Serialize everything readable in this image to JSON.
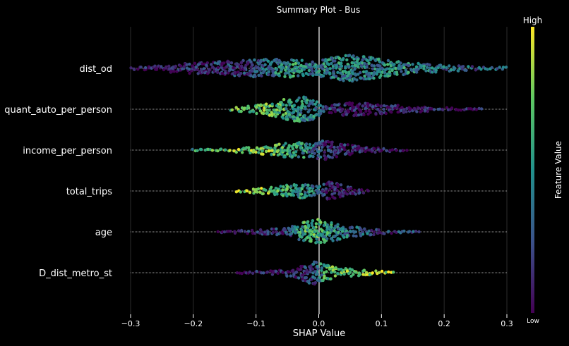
{
  "chart_data": {
    "type": "scatter",
    "subtype": "shap-beeswarm",
    "title": "Summary Plot - Bus",
    "xlabel": "SHAP Value",
    "ylabel": "",
    "xlim": [
      -0.3,
      0.3
    ],
    "xticks": [
      -0.3,
      -0.2,
      -0.1,
      0.0,
      0.1,
      0.2,
      0.3
    ],
    "xtick_labels": [
      "−0.3",
      "−0.2",
      "−0.1",
      "0.0",
      "0.1",
      "0.2",
      "0.3"
    ],
    "grid": true,
    "zero_line": 0.0,
    "colorbar": {
      "label": "Feature Value",
      "high_label": "High",
      "low_label": "Low",
      "colormap": "viridis",
      "colors": [
        "#440154",
        "#3b528b",
        "#21918c",
        "#5ec962",
        "#fde725"
      ]
    },
    "features": [
      {
        "name": "dist_od",
        "range": [
          -0.3,
          0.3
        ],
        "segments": [
          {
            "x": -0.3,
            "w": 0.1,
            "v": 0.05
          },
          {
            "x": -0.25,
            "w": 0.25,
            "v": 0.08
          },
          {
            "x": -0.2,
            "w": 0.4,
            "v": 0.1
          },
          {
            "x": -0.15,
            "w": 0.55,
            "v": 0.15
          },
          {
            "x": -0.1,
            "w": 0.65,
            "v": 0.2
          },
          {
            "x": -0.07,
            "w": 0.7,
            "v": 0.45
          },
          {
            "x": -0.04,
            "w": 0.65,
            "v": 0.55
          },
          {
            "x": -0.01,
            "w": 0.55,
            "v": 0.4
          },
          {
            "x": 0.02,
            "w": 0.8,
            "v": 0.45
          },
          {
            "x": 0.05,
            "w": 1.0,
            "v": 0.45
          },
          {
            "x": 0.08,
            "w": 0.85,
            "v": 0.4
          },
          {
            "x": 0.11,
            "w": 0.6,
            "v": 0.5
          },
          {
            "x": 0.14,
            "w": 0.45,
            "v": 0.45
          },
          {
            "x": 0.18,
            "w": 0.3,
            "v": 0.4
          },
          {
            "x": 0.22,
            "w": 0.2,
            "v": 0.3
          },
          {
            "x": 0.26,
            "w": 0.1,
            "v": 0.3
          }
        ]
      },
      {
        "name": "quant_auto_per_person",
        "range": [
          -0.14,
          0.26
        ],
        "segments": [
          {
            "x": -0.14,
            "w": 0.1,
            "v": 0.7
          },
          {
            "x": -0.11,
            "w": 0.25,
            "v": 0.75
          },
          {
            "x": -0.08,
            "w": 0.45,
            "v": 0.7
          },
          {
            "x": -0.05,
            "w": 0.8,
            "v": 0.6
          },
          {
            "x": -0.03,
            "w": 1.0,
            "v": 0.5
          },
          {
            "x": -0.01,
            "w": 0.8,
            "v": 0.45
          },
          {
            "x": 0.01,
            "w": 0.2,
            "v": 0.3
          },
          {
            "x": 0.03,
            "w": 0.4,
            "v": 0.1
          },
          {
            "x": 0.05,
            "w": 0.55,
            "v": 0.05
          },
          {
            "x": 0.08,
            "w": 0.45,
            "v": 0.05
          },
          {
            "x": 0.12,
            "w": 0.3,
            "v": 0.05
          },
          {
            "x": 0.16,
            "w": 0.2,
            "v": 0.05
          },
          {
            "x": 0.21,
            "w": 0.12,
            "v": 0.05
          },
          {
            "x": 0.25,
            "w": 0.06,
            "v": 0.05
          }
        ]
      },
      {
        "name": "income_per_person",
        "range": [
          -0.2,
          0.14
        ],
        "segments": [
          {
            "x": -0.195,
            "w": 0.05,
            "v": 0.55
          },
          {
            "x": -0.11,
            "w": 0.2,
            "v": 0.8
          },
          {
            "x": -0.08,
            "w": 0.35,
            "v": 0.75
          },
          {
            "x": -0.05,
            "w": 0.55,
            "v": 0.6
          },
          {
            "x": -0.02,
            "w": 0.6,
            "v": 0.5
          },
          {
            "x": 0.01,
            "w": 0.7,
            "v": 0.15
          },
          {
            "x": 0.03,
            "w": 0.55,
            "v": 0.1
          },
          {
            "x": 0.06,
            "w": 0.3,
            "v": 0.08
          },
          {
            "x": 0.09,
            "w": 0.2,
            "v": 0.05
          },
          {
            "x": 0.12,
            "w": 0.08,
            "v": 0.05
          }
        ]
      },
      {
        "name": "total_trips",
        "range": [
          -0.13,
          0.08
        ],
        "segments": [
          {
            "x": -0.13,
            "w": 0.08,
            "v": 0.95
          },
          {
            "x": -0.1,
            "w": 0.18,
            "v": 0.85
          },
          {
            "x": -0.07,
            "w": 0.3,
            "v": 0.7
          },
          {
            "x": -0.04,
            "w": 0.5,
            "v": 0.55
          },
          {
            "x": -0.02,
            "w": 0.55,
            "v": 0.5
          },
          {
            "x": 0.0,
            "w": 0.3,
            "v": 0.3
          },
          {
            "x": 0.015,
            "w": 0.75,
            "v": 0.05
          },
          {
            "x": 0.04,
            "w": 0.45,
            "v": 0.05
          },
          {
            "x": 0.07,
            "w": 0.15,
            "v": 0.05
          }
        ]
      },
      {
        "name": "age",
        "range": [
          -0.16,
          0.16
        ],
        "segments": [
          {
            "x": -0.16,
            "w": 0.05,
            "v": 0.05
          },
          {
            "x": -0.12,
            "w": 0.12,
            "v": 0.1
          },
          {
            "x": -0.08,
            "w": 0.2,
            "v": 0.1
          },
          {
            "x": -0.05,
            "w": 0.3,
            "v": 0.2
          },
          {
            "x": -0.02,
            "w": 0.8,
            "v": 0.65
          },
          {
            "x": 0.0,
            "w": 1.0,
            "v": 0.65
          },
          {
            "x": 0.02,
            "w": 0.7,
            "v": 0.5
          },
          {
            "x": 0.05,
            "w": 0.4,
            "v": 0.35
          },
          {
            "x": 0.08,
            "w": 0.25,
            "v": 0.3
          },
          {
            "x": 0.12,
            "w": 0.1,
            "v": 0.2
          },
          {
            "x": 0.16,
            "w": 0.04,
            "v": 0.2
          }
        ]
      },
      {
        "name": "D_dist_metro_st",
        "range": [
          -0.13,
          0.12
        ],
        "segments": [
          {
            "x": -0.13,
            "w": 0.05,
            "v": 0.05
          },
          {
            "x": -0.1,
            "w": 0.1,
            "v": 0.1
          },
          {
            "x": -0.07,
            "w": 0.18,
            "v": 0.1
          },
          {
            "x": -0.04,
            "w": 0.3,
            "v": 0.1
          },
          {
            "x": -0.01,
            "w": 0.9,
            "v": 0.2
          },
          {
            "x": 0.01,
            "w": 0.6,
            "v": 0.6
          },
          {
            "x": 0.03,
            "w": 0.35,
            "v": 0.75
          },
          {
            "x": 0.06,
            "w": 0.25,
            "v": 0.8
          },
          {
            "x": 0.09,
            "w": 0.15,
            "v": 0.8
          },
          {
            "x": 0.12,
            "w": 0.05,
            "v": 0.9
          }
        ]
      }
    ]
  }
}
